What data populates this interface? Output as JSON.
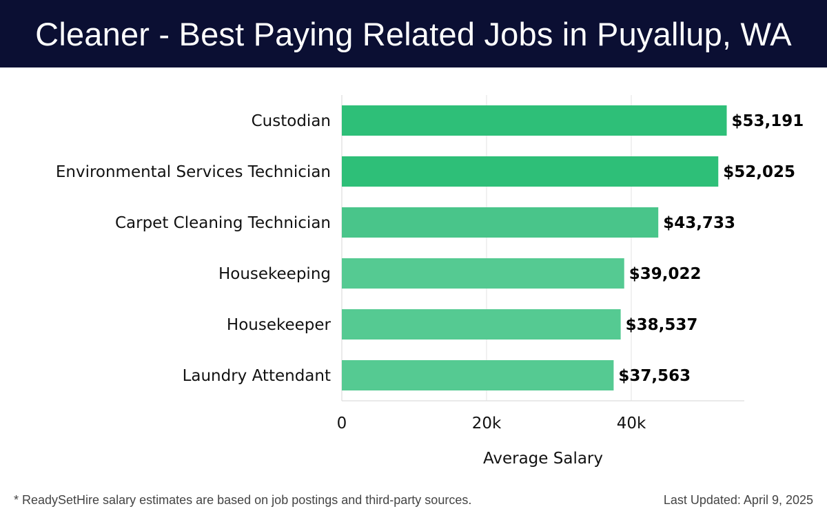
{
  "header": {
    "title": "Cleaner - Best Paying Related Jobs in Puyallup, WA"
  },
  "chart_data": {
    "type": "bar",
    "orientation": "horizontal",
    "categories": [
      "Custodian",
      "Environmental Services Technician",
      "Carpet Cleaning Technician",
      "Housekeeping",
      "Housekeeper",
      "Laundry Attendant"
    ],
    "values": [
      53191,
      52025,
      43733,
      39022,
      38537,
      37563
    ],
    "data_labels": [
      "$53,191",
      "$52,025",
      "$43,733",
      "$39,022",
      "$38,537",
      "$37,563"
    ],
    "bar_colors": [
      "#2ebf78",
      "#2ebf78",
      "#49c58a",
      "#55ca92",
      "#55ca92",
      "#55ca92"
    ],
    "xlabel": "Average Salary",
    "ylabel": "",
    "xlim": [
      0,
      56000
    ],
    "x_ticks": [
      0,
      20000,
      40000
    ],
    "x_tick_labels": [
      "0",
      "20k",
      "40k"
    ],
    "grid": "vertical"
  },
  "footer": {
    "note": "* ReadySetHire salary estimates are based on job postings and third-party sources.",
    "updated": "Last Updated: April 9, 2025"
  }
}
